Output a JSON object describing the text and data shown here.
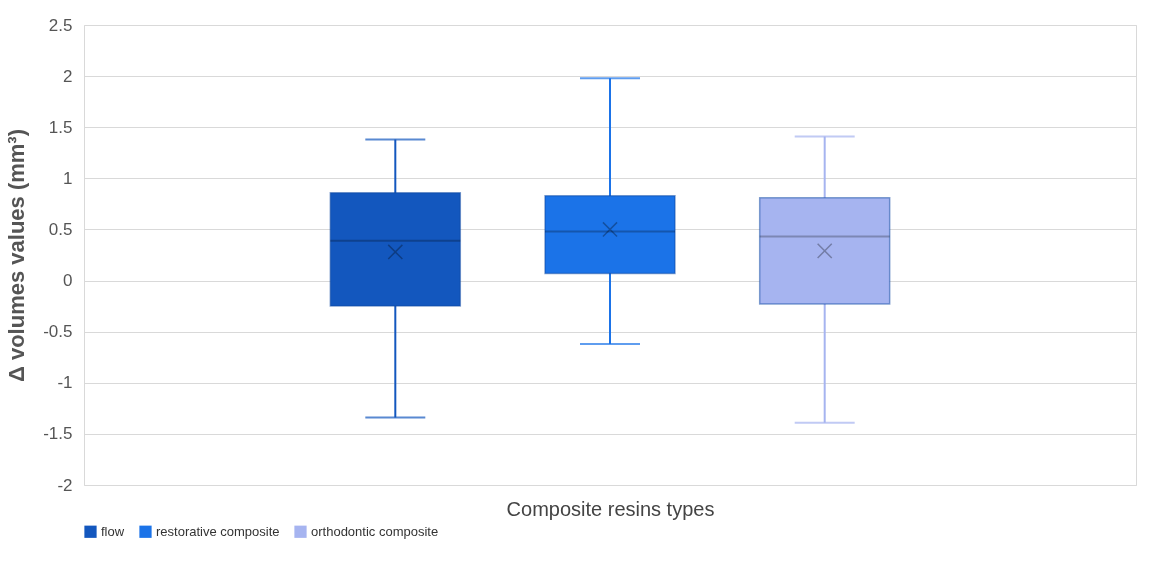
{
  "chart_data": {
    "type": "box",
    "xlabel": "Composite resins types",
    "ylabel": "Δ volumes values (mm³)",
    "categories": [
      null
    ],
    "series": [
      {
        "name": "flow",
        "color": "#1357be",
        "boxes": [
          {
            "low": -1.34,
            "q1": -0.25,
            "median": 0.39,
            "q3": 0.86,
            "high": 1.38,
            "mean": 0.28
          }
        ]
      },
      {
        "name": "restorative composite",
        "color": "#1b73e8",
        "boxes": [
          {
            "low": -0.62,
            "q1": 0.07,
            "median": 0.48,
            "q3": 0.83,
            "high": 1.98,
            "mean": 0.5
          }
        ]
      },
      {
        "name": "orthodontic composite",
        "color": "#a6b4f0",
        "boxes": [
          {
            "low": -1.39,
            "q1": -0.23,
            "median": 0.43,
            "q3": 0.81,
            "high": 1.41,
            "mean": 0.29
          }
        ]
      }
    ],
    "ylim": [
      -2,
      2.5
    ],
    "yticks": [
      -2,
      -1.5,
      -1,
      -0.5,
      0,
      0.5,
      1,
      1.5,
      2,
      2.5
    ],
    "grid": true,
    "legend": "bottom",
    "marker": "cross"
  }
}
